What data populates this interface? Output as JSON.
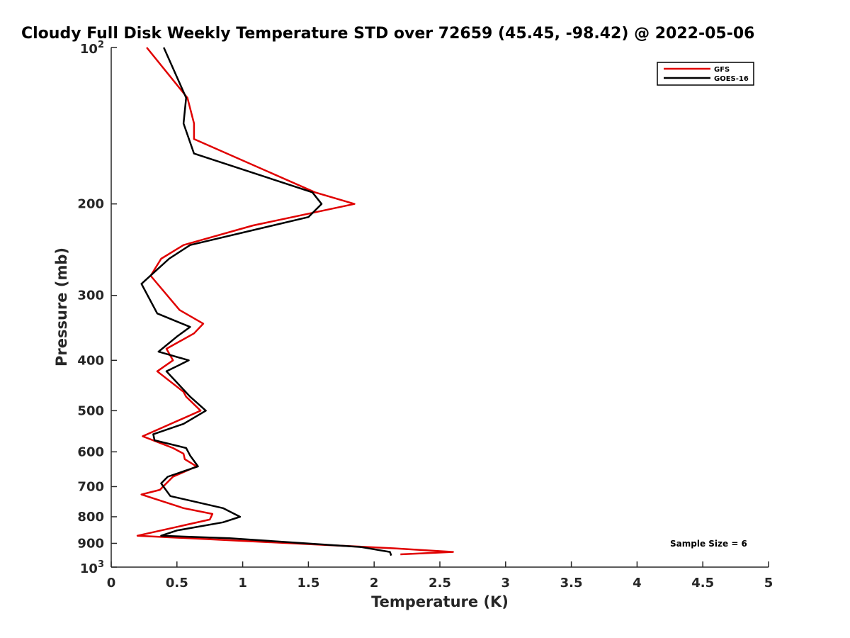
{
  "chart_data": {
    "type": "line",
    "title": "Cloudy Full Disk Weekly Temperature STD over 72659 (45.45, -98.42) @ 2022-05-06",
    "xlabel": "Temperature (K)",
    "ylabel": "Pressure (mb)",
    "xlim": [
      0,
      5
    ],
    "ylim": [
      100,
      1000
    ],
    "yscale": "log",
    "y_reversed": true,
    "xticks": [
      0,
      0.5,
      1,
      1.5,
      2,
      2.5,
      3,
      3.5,
      4,
      4.5,
      5
    ],
    "xtick_labels": [
      "0",
      "0.5",
      "1",
      "1.5",
      "2",
      "2.5",
      "3",
      "3.5",
      "4",
      "4.5",
      "5"
    ],
    "yticks": [
      200,
      300,
      400,
      500,
      600,
      700,
      800,
      900
    ],
    "ytick_labels": [
      "200",
      "300",
      "400",
      "500",
      "600",
      "700",
      "800",
      "900"
    ],
    "y_end_labels": [
      {
        "value": 100,
        "base": "10",
        "exp": "2"
      },
      {
        "value": 1000,
        "base": "10",
        "exp": "3"
      }
    ],
    "grid": false,
    "legend_position": "top-right",
    "series": [
      {
        "name": "GFS",
        "color": "#e00000",
        "points": [
          [
            0.27,
            100
          ],
          [
            0.58,
            125
          ],
          [
            0.63,
            140
          ],
          [
            0.63,
            150
          ],
          [
            1.55,
            190
          ],
          [
            1.85,
            200
          ],
          [
            1.08,
            220
          ],
          [
            0.55,
            240
          ],
          [
            0.38,
            255
          ],
          [
            0.3,
            275
          ],
          [
            0.52,
            320
          ],
          [
            0.7,
            340
          ],
          [
            0.63,
            355
          ],
          [
            0.42,
            380
          ],
          [
            0.47,
            400
          ],
          [
            0.35,
            420
          ],
          [
            0.55,
            460
          ],
          [
            0.57,
            470
          ],
          [
            0.68,
            500
          ],
          [
            0.24,
            560
          ],
          [
            0.47,
            590
          ],
          [
            0.55,
            605
          ],
          [
            0.56,
            620
          ],
          [
            0.65,
            640
          ],
          [
            0.47,
            670
          ],
          [
            0.37,
            710
          ],
          [
            0.23,
            725
          ],
          [
            0.55,
            770
          ],
          [
            0.77,
            790
          ],
          [
            0.75,
            810
          ],
          [
            0.2,
            870
          ],
          [
            2.15,
            920
          ],
          [
            2.6,
            935
          ],
          [
            2.2,
            945
          ]
        ]
      },
      {
        "name": "GOES-16",
        "color": "#000000",
        "points": [
          [
            0.4,
            100
          ],
          [
            0.57,
            125
          ],
          [
            0.55,
            140
          ],
          [
            0.63,
            160
          ],
          [
            1.53,
            190
          ],
          [
            1.6,
            200
          ],
          [
            1.5,
            212
          ],
          [
            0.6,
            240
          ],
          [
            0.44,
            255
          ],
          [
            0.23,
            285
          ],
          [
            0.35,
            325
          ],
          [
            0.6,
            345
          ],
          [
            0.5,
            360
          ],
          [
            0.36,
            385
          ],
          [
            0.59,
            400
          ],
          [
            0.42,
            420
          ],
          [
            0.6,
            470
          ],
          [
            0.72,
            500
          ],
          [
            0.55,
            530
          ],
          [
            0.32,
            555
          ],
          [
            0.33,
            570
          ],
          [
            0.57,
            590
          ],
          [
            0.6,
            610
          ],
          [
            0.66,
            640
          ],
          [
            0.43,
            670
          ],
          [
            0.38,
            690
          ],
          [
            0.45,
            730
          ],
          [
            0.85,
            770
          ],
          [
            0.98,
            800
          ],
          [
            0.85,
            820
          ],
          [
            0.5,
            850
          ],
          [
            0.38,
            870
          ],
          [
            0.9,
            880
          ],
          [
            1.9,
            915
          ],
          [
            2.12,
            935
          ],
          [
            2.13,
            950
          ]
        ]
      }
    ],
    "annotations": [
      {
        "text": "Sample Size = 6",
        "position": "bottom-right"
      }
    ]
  }
}
